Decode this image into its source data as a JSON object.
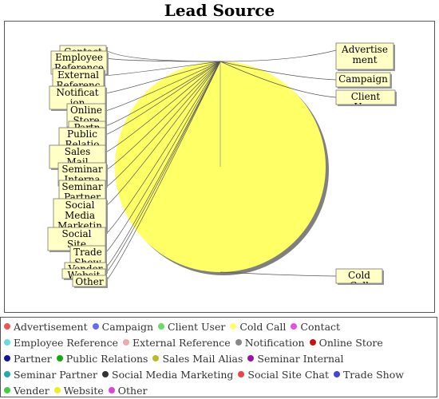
{
  "chart_data": {
    "type": "pie",
    "title": "Lead Source",
    "categories": [
      "Advertisement",
      "Campaign",
      "Client User",
      "Cold Call",
      "Contact",
      "Employee Reference",
      "External Reference",
      "Notification",
      "Online Store",
      "Partner",
      "Public Relations",
      "Sales Mail Alias",
      "Seminar Internal",
      "Seminar Partner",
      "Social Media Marketing",
      "Social Site Chat",
      "Trade Show",
      "Vender",
      "Website",
      "Other"
    ],
    "values": [
      0,
      0,
      0,
      100,
      0,
      0,
      0,
      0,
      0,
      0,
      0,
      0,
      0,
      0,
      0,
      0,
      0,
      0,
      0,
      0
    ],
    "colors": [
      "#ee5555",
      "#6a6aee",
      "#66dd66",
      "#ffff66",
      "#dd55dd",
      "#66dddd",
      "#eeaaaa",
      "#888888",
      "#cc1111",
      "#1111aa",
      "#11aa11",
      "#bbbb22",
      "#9911aa",
      "#22aaaa",
      "#333333",
      "#ee4444",
      "#4444dd",
      "#44cc44",
      "#eeee22",
      "#dd44dd"
    ],
    "slice_labels": [
      "Advertisement",
      "Campaign",
      "Client User",
      "Cold Call",
      "Contact",
      "Employee Reference",
      "External Reference",
      "Notification",
      "Online Store",
      "Partner",
      "Public Relations",
      "Sales Mail Alias",
      "Seminar Internal",
      "Seminar Partner",
      "Social Media Marketing",
      "Social Site Chat",
      "Trade Show",
      "Vender",
      "Website",
      "Other"
    ],
    "legend_position": "bottom"
  }
}
